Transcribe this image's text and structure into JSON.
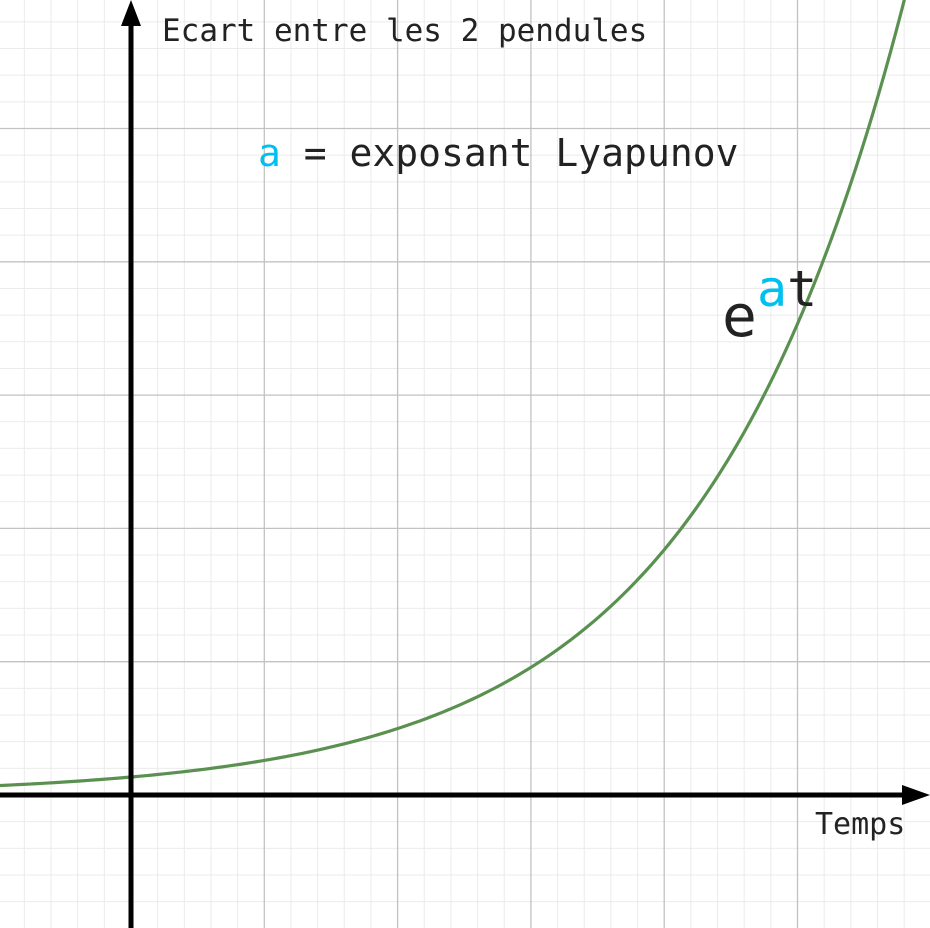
{
  "chart_data": {
    "type": "line",
    "title": "Ecart entre les 2 pendules",
    "xlabel": "Temps",
    "ylabel": "",
    "annotation": {
      "symbol": "a",
      "rest": " = exposant Lyapunov"
    },
    "formula": {
      "base": "e",
      "exp_symbol": "a",
      "exp_var": "t"
    },
    "grid": true,
    "xlim": [
      -0.98,
      6.0
    ],
    "ylim": [
      -1.0,
      6.0
    ],
    "series": [
      {
        "function": "exponential",
        "x": [
          -0.98,
          -0.5,
          0,
          0.5,
          1,
          1.5,
          2,
          2.5,
          3,
          3.5,
          4,
          4.5,
          5,
          5.5,
          6.0
        ],
        "values": [
          0.074,
          0.104,
          0.135,
          0.18,
          0.24,
          0.324,
          0.445,
          0.636,
          0.95,
          1.36,
          1.95,
          2.85,
          3.04,
          5.2,
          6.42
        ]
      }
    ],
    "colors": {
      "curve": "#5a9150",
      "accent": "#00c0f0",
      "axis": "#000000",
      "grid_major": "#c2c2c2",
      "grid_minor": "#ebebeb"
    }
  }
}
